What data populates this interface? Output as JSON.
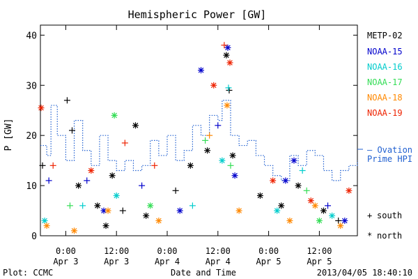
{
  "chart_data": {
    "type": "scatter",
    "title": "Hemispheric Power [GW]",
    "ylabel": "P [GW]",
    "xlabel": "Date and Time",
    "ylim": [
      0,
      42
    ],
    "x_range": [
      "2013-04-02 18:00",
      "2013-04-05 21:00"
    ],
    "yticks": [
      0,
      10,
      20,
      30,
      40
    ],
    "xticks": [
      {
        "time": "2013-04-03 00:00",
        "top": "0:00",
        "bottom": "Apr 3"
      },
      {
        "time": "2013-04-03 12:00",
        "top": "12:00",
        "bottom": "Apr 3"
      },
      {
        "time": "2013-04-04 00:00",
        "top": "0:00",
        "bottom": "Apr 4"
      },
      {
        "time": "2013-04-04 12:00",
        "top": "12:00",
        "bottom": "Apr 4"
      },
      {
        "time": "2013-04-05 00:00",
        "top": "0:00",
        "bottom": "Apr 5"
      },
      {
        "time": "2013-04-05 12:00",
        "top": "12:00",
        "bottom": "Apr 5"
      }
    ],
    "legend_placement": "right",
    "series": [
      {
        "name": "METP-02",
        "color": "#000000",
        "points": [
          {
            "x": "2013-04-02 18:30",
            "y": 14,
            "m": "+"
          },
          {
            "x": "2013-04-03 00:20",
            "y": 27,
            "m": "+"
          },
          {
            "x": "2013-04-03 01:30",
            "y": 21,
            "m": "+"
          },
          {
            "x": "2013-04-03 03:00",
            "y": 10,
            "m": "*"
          },
          {
            "x": "2013-04-03 07:30",
            "y": 6,
            "m": "*"
          },
          {
            "x": "2013-04-03 09:30",
            "y": 2,
            "m": "*"
          },
          {
            "x": "2013-04-03 11:00",
            "y": 12,
            "m": "*"
          },
          {
            "x": "2013-04-03 13:30",
            "y": 5,
            "m": "+"
          },
          {
            "x": "2013-04-03 16:30",
            "y": 22,
            "m": "*"
          },
          {
            "x": "2013-04-03 19:00",
            "y": 4,
            "m": "*"
          },
          {
            "x": "2013-04-04 02:00",
            "y": 9,
            "m": "+"
          },
          {
            "x": "2013-04-04 05:30",
            "y": 14,
            "m": "*"
          },
          {
            "x": "2013-04-04 09:30",
            "y": 17,
            "m": "*"
          },
          {
            "x": "2013-04-04 14:00",
            "y": 36,
            "m": "*"
          },
          {
            "x": "2013-04-04 14:40",
            "y": 29,
            "m": "+"
          },
          {
            "x": "2013-04-04 15:30",
            "y": 16,
            "m": "*"
          },
          {
            "x": "2013-04-04 22:00",
            "y": 8,
            "m": "*"
          },
          {
            "x": "2013-04-05 03:00",
            "y": 6,
            "m": "*"
          },
          {
            "x": "2013-04-05 07:00",
            "y": 10,
            "m": "*"
          },
          {
            "x": "2013-04-05 13:00",
            "y": 5,
            "m": "*"
          },
          {
            "x": "2013-04-05 16:30",
            "y": 3,
            "m": "+"
          }
        ]
      },
      {
        "name": "NOAA-15",
        "color": "#0000cc",
        "points": [
          {
            "x": "2013-04-02 20:00",
            "y": 11,
            "m": "+"
          },
          {
            "x": "2013-04-03 05:00",
            "y": 11,
            "m": "+"
          },
          {
            "x": "2013-04-03 09:00",
            "y": 5,
            "m": "*"
          },
          {
            "x": "2013-04-03 18:00",
            "y": 10,
            "m": "+"
          },
          {
            "x": "2013-04-04 03:00",
            "y": 5,
            "m": "*"
          },
          {
            "x": "2013-04-04 08:00",
            "y": 33,
            "m": "*"
          },
          {
            "x": "2013-04-04 12:00",
            "y": 22,
            "m": "+"
          },
          {
            "x": "2013-04-04 14:20",
            "y": 37.5,
            "m": "*"
          },
          {
            "x": "2013-04-04 16:00",
            "y": 12,
            "m": "*"
          },
          {
            "x": "2013-04-05 04:00",
            "y": 11,
            "m": "*"
          },
          {
            "x": "2013-04-05 06:00",
            "y": 15,
            "m": "*"
          },
          {
            "x": "2013-04-05 14:00",
            "y": 6,
            "m": "+"
          },
          {
            "x": "2013-04-05 18:00",
            "y": 3,
            "m": "*"
          }
        ]
      },
      {
        "name": "NOAA-16",
        "color": "#00cccc",
        "points": [
          {
            "x": "2013-04-02 19:00",
            "y": 3,
            "m": "*"
          },
          {
            "x": "2013-04-03 04:00",
            "y": 6,
            "m": "+"
          },
          {
            "x": "2013-04-03 12:00",
            "y": 8,
            "m": "*"
          },
          {
            "x": "2013-04-04 06:00",
            "y": 6,
            "m": "+"
          },
          {
            "x": "2013-04-04 13:00",
            "y": 15,
            "m": "*"
          },
          {
            "x": "2013-04-04 14:30",
            "y": 29.5,
            "m": "+"
          },
          {
            "x": "2013-04-05 02:00",
            "y": 5,
            "m": "*"
          },
          {
            "x": "2013-04-05 08:00",
            "y": 13,
            "m": "+"
          },
          {
            "x": "2013-04-05 15:00",
            "y": 4,
            "m": "*"
          }
        ]
      },
      {
        "name": "NOAA-17",
        "color": "#33dd55",
        "points": [
          {
            "x": "2013-04-03 01:00",
            "y": 6,
            "m": "+"
          },
          {
            "x": "2013-04-03 11:30",
            "y": 24,
            "m": "*"
          },
          {
            "x": "2013-04-03 20:00",
            "y": 6,
            "m": "*"
          },
          {
            "x": "2013-04-04 09:00",
            "y": 19,
            "m": "+"
          },
          {
            "x": "2013-04-04 15:00",
            "y": 14,
            "m": "+"
          },
          {
            "x": "2013-04-05 09:00",
            "y": 9,
            "m": "+"
          },
          {
            "x": "2013-04-05 12:00",
            "y": 3,
            "m": "*"
          }
        ]
      },
      {
        "name": "NOAA-18",
        "color": "#ff8800",
        "points": [
          {
            "x": "2013-04-02 19:30",
            "y": 2,
            "m": "*"
          },
          {
            "x": "2013-04-03 02:00",
            "y": 1,
            "m": "*"
          },
          {
            "x": "2013-04-03 10:00",
            "y": 5,
            "m": "*"
          },
          {
            "x": "2013-04-03 22:00",
            "y": 3,
            "m": "*"
          },
          {
            "x": "2013-04-04 10:00",
            "y": 20,
            "m": "+"
          },
          {
            "x": "2013-04-04 14:10",
            "y": 26,
            "m": "*"
          },
          {
            "x": "2013-04-04 17:00",
            "y": 5,
            "m": "*"
          },
          {
            "x": "2013-04-05 05:00",
            "y": 3,
            "m": "*"
          },
          {
            "x": "2013-04-05 11:00",
            "y": 6,
            "m": "*"
          },
          {
            "x": "2013-04-05 17:00",
            "y": 2,
            "m": "*"
          }
        ]
      },
      {
        "name": "NOAA-19",
        "color": "#ee2200",
        "points": [
          {
            "x": "2013-04-02 18:10",
            "y": 25.5,
            "m": "*"
          },
          {
            "x": "2013-04-02 21:00",
            "y": 14,
            "m": "+"
          },
          {
            "x": "2013-04-03 06:00",
            "y": 13,
            "m": "*"
          },
          {
            "x": "2013-04-03 14:00",
            "y": 18.5,
            "m": "+"
          },
          {
            "x": "2013-04-03 21:00",
            "y": 14,
            "m": "+"
          },
          {
            "x": "2013-04-04 11:00",
            "y": 30,
            "m": "*"
          },
          {
            "x": "2013-04-04 13:30",
            "y": 38,
            "m": "+"
          },
          {
            "x": "2013-04-04 14:50",
            "y": 34.5,
            "m": "*"
          },
          {
            "x": "2013-04-05 01:00",
            "y": 11,
            "m": "*"
          },
          {
            "x": "2013-04-05 10:00",
            "y": 7,
            "m": "*"
          },
          {
            "x": "2013-04-05 19:00",
            "y": 9,
            "m": "*"
          }
        ]
      },
      {
        "name": "Ovation Prime HPI",
        "color": "#1f5fd0",
        "dotted": true,
        "points": [
          {
            "x": "2013-04-02 18:00",
            "y": 18
          },
          {
            "x": "2013-04-02 19:30",
            "y": 16
          },
          {
            "x": "2013-04-02 20:30",
            "y": 26
          },
          {
            "x": "2013-04-02 22:00",
            "y": 20
          },
          {
            "x": "2013-04-03 00:00",
            "y": 15
          },
          {
            "x": "2013-04-03 02:00",
            "y": 23
          },
          {
            "x": "2013-04-03 04:00",
            "y": 17
          },
          {
            "x": "2013-04-03 06:00",
            "y": 14
          },
          {
            "x": "2013-04-03 08:00",
            "y": 20
          },
          {
            "x": "2013-04-03 10:00",
            "y": 15
          },
          {
            "x": "2013-04-03 12:00",
            "y": 13
          },
          {
            "x": "2013-04-03 14:00",
            "y": 15
          },
          {
            "x": "2013-04-03 16:00",
            "y": 13
          },
          {
            "x": "2013-04-03 18:00",
            "y": 14
          },
          {
            "x": "2013-04-03 20:00",
            "y": 19
          },
          {
            "x": "2013-04-03 22:00",
            "y": 16
          },
          {
            "x": "2013-04-04 00:00",
            "y": 20
          },
          {
            "x": "2013-04-04 02:00",
            "y": 15
          },
          {
            "x": "2013-04-04 04:00",
            "y": 17
          },
          {
            "x": "2013-04-04 06:00",
            "y": 22
          },
          {
            "x": "2013-04-04 08:00",
            "y": 20
          },
          {
            "x": "2013-04-04 10:00",
            "y": 24
          },
          {
            "x": "2013-04-04 12:00",
            "y": 23
          },
          {
            "x": "2013-04-04 13:00",
            "y": 27
          },
          {
            "x": "2013-04-04 15:00",
            "y": 20
          },
          {
            "x": "2013-04-04 17:00",
            "y": 18
          },
          {
            "x": "2013-04-04 19:00",
            "y": 19
          },
          {
            "x": "2013-04-04 21:00",
            "y": 16
          },
          {
            "x": "2013-04-04 23:00",
            "y": 14
          },
          {
            "x": "2013-04-05 01:00",
            "y": 12
          },
          {
            "x": "2013-04-05 03:00",
            "y": 11
          },
          {
            "x": "2013-04-05 05:00",
            "y": 16
          },
          {
            "x": "2013-04-05 07:00",
            "y": 14
          },
          {
            "x": "2013-04-05 09:00",
            "y": 17
          },
          {
            "x": "2013-04-05 11:00",
            "y": 16
          },
          {
            "x": "2013-04-05 13:00",
            "y": 13
          },
          {
            "x": "2013-04-05 15:00",
            "y": 11
          },
          {
            "x": "2013-04-05 17:00",
            "y": 13
          },
          {
            "x": "2013-04-05 19:00",
            "y": 14
          },
          {
            "x": "2013-04-05 21:00",
            "y": 15
          }
        ]
      }
    ],
    "legend": {
      "satellites": [
        "METP-02",
        "NOAA-15",
        "NOAA-16",
        "NOAA-17",
        "NOAA-18",
        "NOAA-19"
      ],
      "model_line1": "— Ovation",
      "model_line2": "Prime HPI",
      "markers": [
        {
          "symbol": "+",
          "label": "south"
        },
        {
          "symbol": "*",
          "label": "north"
        }
      ]
    }
  },
  "footer": {
    "left": "Plot: CCMC",
    "center": "Date and Time",
    "right": "2013/04/05 18:40:10"
  }
}
